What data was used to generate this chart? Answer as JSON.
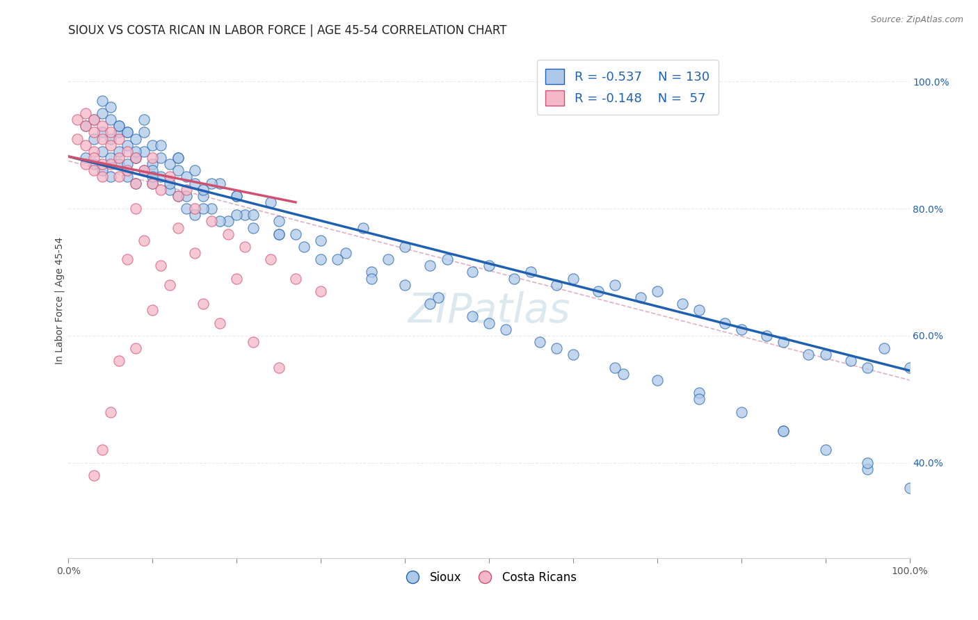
{
  "title": "SIOUX VS COSTA RICAN IN LABOR FORCE | AGE 45-54 CORRELATION CHART",
  "source_text": "Source: ZipAtlas.com",
  "xlabel": "",
  "ylabel": "In Labor Force | Age 45-54",
  "xlim": [
    0.0,
    1.0
  ],
  "ylim": [
    0.25,
    1.06
  ],
  "x_tick_labels": [
    "0.0%",
    "100.0%"
  ],
  "y_tick_labels": [
    "40.0%",
    "60.0%",
    "80.0%",
    "100.0%"
  ],
  "y_tick_values": [
    0.4,
    0.6,
    0.8,
    1.0
  ],
  "blue_color": "#aec9e8",
  "pink_color": "#f5b8c8",
  "blue_line_color": "#2060b0",
  "pink_line_color": "#d05070",
  "dashed_line_color": "#e0b0c0",
  "watermark": "ZIPatlas",
  "watermark_color": "#dce8f0",
  "background_color": "#ffffff",
  "grid_color": "#e8e8e8",
  "title_fontsize": 12,
  "axis_label_fontsize": 10,
  "tick_fontsize": 10,
  "legend_fontsize": 13,
  "watermark_fontsize": 42,
  "blue_scatter_x": [
    0.02,
    0.02,
    0.03,
    0.03,
    0.03,
    0.04,
    0.04,
    0.04,
    0.04,
    0.05,
    0.05,
    0.05,
    0.05,
    0.06,
    0.06,
    0.06,
    0.06,
    0.07,
    0.07,
    0.07,
    0.07,
    0.08,
    0.08,
    0.08,
    0.09,
    0.09,
    0.09,
    0.1,
    0.1,
    0.1,
    0.11,
    0.11,
    0.12,
    0.12,
    0.13,
    0.13,
    0.14,
    0.14,
    0.15,
    0.15,
    0.16,
    0.17,
    0.18,
    0.19,
    0.2,
    0.21,
    0.22,
    0.24,
    0.25,
    0.27,
    0.3,
    0.33,
    0.35,
    0.38,
    0.4,
    0.43,
    0.45,
    0.48,
    0.5,
    0.53,
    0.55,
    0.58,
    0.6,
    0.63,
    0.65,
    0.68,
    0.7,
    0.73,
    0.75,
    0.78,
    0.8,
    0.83,
    0.85,
    0.88,
    0.9,
    0.93,
    0.95,
    0.97,
    1.0,
    0.05,
    0.07,
    0.08,
    0.09,
    0.1,
    0.11,
    0.12,
    0.13,
    0.14,
    0.15,
    0.16,
    0.17,
    0.18,
    0.2,
    0.22,
    0.25,
    0.28,
    0.32,
    0.36,
    0.4,
    0.44,
    0.48,
    0.52,
    0.56,
    0.6,
    0.65,
    0.7,
    0.75,
    0.8,
    0.85,
    0.9,
    0.95,
    1.0,
    0.04,
    0.06,
    0.08,
    0.1,
    0.13,
    0.16,
    0.2,
    0.25,
    0.3,
    0.36,
    0.43,
    0.5,
    0.58,
    0.66,
    0.75,
    0.85,
    0.95
  ],
  "blue_scatter_y": [
    0.93,
    0.88,
    0.91,
    0.94,
    0.87,
    0.92,
    0.89,
    0.95,
    0.86,
    0.91,
    0.88,
    0.94,
    0.85,
    0.92,
    0.89,
    0.87,
    0.93,
    0.9,
    0.87,
    0.85,
    0.92,
    0.88,
    0.91,
    0.84,
    0.89,
    0.86,
    0.92,
    0.87,
    0.9,
    0.84,
    0.88,
    0.85,
    0.87,
    0.83,
    0.86,
    0.82,
    0.85,
    0.8,
    0.84,
    0.79,
    0.82,
    0.8,
    0.84,
    0.78,
    0.82,
    0.79,
    0.77,
    0.81,
    0.78,
    0.76,
    0.75,
    0.73,
    0.77,
    0.72,
    0.74,
    0.71,
    0.72,
    0.7,
    0.71,
    0.69,
    0.7,
    0.68,
    0.69,
    0.67,
    0.68,
    0.66,
    0.67,
    0.65,
    0.64,
    0.62,
    0.61,
    0.6,
    0.59,
    0.57,
    0.57,
    0.56,
    0.55,
    0.58,
    0.55,
    0.96,
    0.92,
    0.88,
    0.94,
    0.86,
    0.9,
    0.84,
    0.88,
    0.82,
    0.86,
    0.8,
    0.84,
    0.78,
    0.82,
    0.79,
    0.76,
    0.74,
    0.72,
    0.7,
    0.68,
    0.66,
    0.63,
    0.61,
    0.59,
    0.57,
    0.55,
    0.53,
    0.51,
    0.48,
    0.45,
    0.42,
    0.39,
    0.36,
    0.97,
    0.93,
    0.89,
    0.85,
    0.88,
    0.83,
    0.79,
    0.76,
    0.72,
    0.69,
    0.65,
    0.62,
    0.58,
    0.54,
    0.5,
    0.45,
    0.4
  ],
  "pink_scatter_x": [
    0.01,
    0.01,
    0.02,
    0.02,
    0.02,
    0.02,
    0.03,
    0.03,
    0.03,
    0.03,
    0.03,
    0.04,
    0.04,
    0.04,
    0.04,
    0.05,
    0.05,
    0.05,
    0.06,
    0.06,
    0.06,
    0.07,
    0.07,
    0.08,
    0.08,
    0.09,
    0.1,
    0.1,
    0.11,
    0.12,
    0.13,
    0.14,
    0.15,
    0.17,
    0.19,
    0.21,
    0.24,
    0.27,
    0.3,
    0.25,
    0.18,
    0.22,
    0.13,
    0.16,
    0.2,
    0.08,
    0.07,
    0.09,
    0.11,
    0.06,
    0.05,
    0.04,
    0.03,
    0.15,
    0.12,
    0.1,
    0.08
  ],
  "pink_scatter_y": [
    0.94,
    0.91,
    0.93,
    0.9,
    0.87,
    0.95,
    0.92,
    0.89,
    0.86,
    0.94,
    0.88,
    0.91,
    0.87,
    0.93,
    0.85,
    0.9,
    0.87,
    0.92,
    0.88,
    0.91,
    0.85,
    0.89,
    0.86,
    0.88,
    0.84,
    0.86,
    0.84,
    0.88,
    0.83,
    0.85,
    0.82,
    0.83,
    0.8,
    0.78,
    0.76,
    0.74,
    0.72,
    0.69,
    0.67,
    0.55,
    0.62,
    0.59,
    0.77,
    0.65,
    0.69,
    0.8,
    0.72,
    0.75,
    0.71,
    0.56,
    0.48,
    0.42,
    0.38,
    0.73,
    0.68,
    0.64,
    0.58
  ],
  "blue_trend_x": [
    0.0,
    1.0
  ],
  "blue_trend_y": [
    0.882,
    0.545
  ],
  "pink_trend_x": [
    0.0,
    0.27
  ],
  "pink_trend_y": [
    0.882,
    0.81
  ],
  "dashed_trend_x": [
    0.0,
    1.0
  ],
  "dashed_trend_y": [
    0.875,
    0.53
  ]
}
